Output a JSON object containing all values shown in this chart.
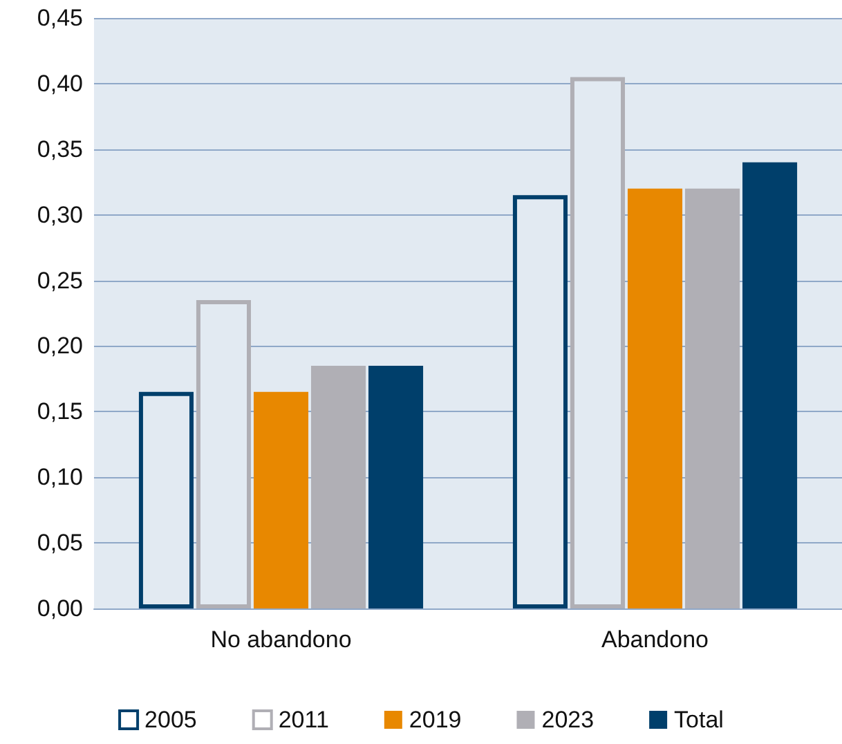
{
  "chart_data": {
    "type": "bar",
    "categories": [
      "No abandono",
      "Abandono"
    ],
    "series": [
      {
        "name": "2005",
        "color": "#003f6b",
        "line_style": "solid",
        "values": [
          0.165,
          0.315
        ]
      },
      {
        "name": "2011",
        "color": "#b0afb5",
        "line_style": "solid",
        "values": [
          0.235,
          0.405
        ]
      },
      {
        "name": "2019",
        "color": "#e88800",
        "values": [
          0.165,
          0.32
        ]
      },
      {
        "name": "2023",
        "color": "#b0afb5",
        "values": [
          0.185,
          0.32
        ]
      },
      {
        "name": "Total",
        "color": "#003f6b",
        "values": [
          0.185,
          0.34
        ]
      }
    ],
    "ylim": [
      0,
      0.45
    ],
    "yticks": [
      {
        "value": 0,
        "label": "0,00"
      },
      {
        "value": 0.05,
        "label": "0,05"
      },
      {
        "value": 0.1,
        "label": "0,10"
      },
      {
        "value": 0.15,
        "label": "0,15"
      },
      {
        "value": 0.2,
        "label": "0,20"
      },
      {
        "value": 0.25,
        "label": "0,25"
      },
      {
        "value": 0.3,
        "label": "0,30"
      },
      {
        "value": 0.35,
        "label": "0,35"
      },
      {
        "value": 0.4,
        "label": "0,40"
      },
      {
        "value": 0.45,
        "label": "0,45"
      }
    ],
    "grid": "y",
    "legend": "bottom"
  }
}
